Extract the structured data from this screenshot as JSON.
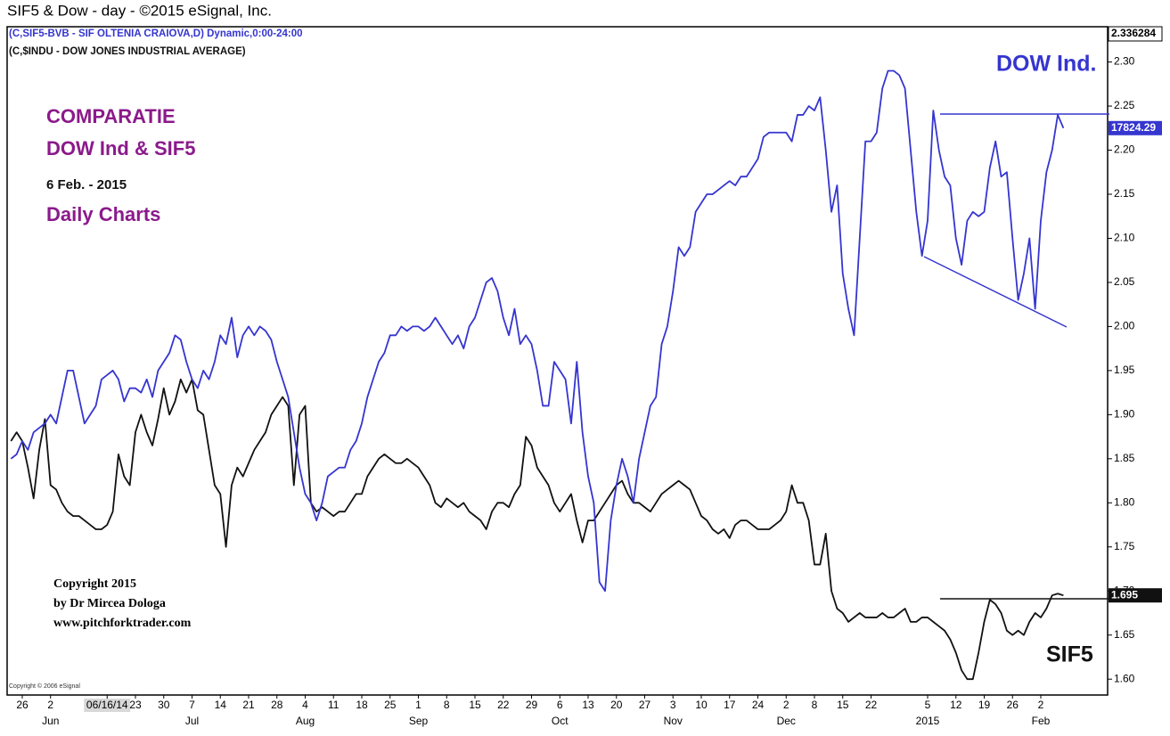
{
  "chart_data": {
    "type": "line",
    "title": "SIF5  & Dow - day - ©2015 eSignal, Inc.",
    "subtitle": "(C,SIF5-BVB - SIF OLTENIA CRAIOVA,D) Dynamic,0:00-24:00",
    "subtitle2": "(C,$INDU - DOW JONES INDUSTRIAL AVERAGE)",
    "annotations": {
      "heading": [
        "COMPARATIE",
        "DOW Ind  & SIF5"
      ],
      "date": "6 Feb. - 2015",
      "kind": "Daily Charts",
      "copyright": [
        "Copyright 2015",
        "by Dr Mircea Dologa",
        "www.pitchforktrader.com"
      ],
      "vendor": "Copyright © 2006 eSignal",
      "top_value": "2.336284"
    },
    "categories": [
      null,
      null,
      "26",
      null,
      null,
      null,
      null,
      "2",
      null,
      null,
      null,
      null,
      null,
      null,
      null,
      null,
      null,
      "06/16/14",
      null,
      null,
      null,
      null,
      "23",
      null,
      null,
      null,
      null,
      "30",
      null,
      null,
      null,
      null,
      "7",
      null,
      null,
      null,
      null,
      "14",
      null,
      null,
      null,
      null,
      "21",
      null,
      null,
      null,
      null,
      "28",
      null,
      null,
      null,
      null,
      "4",
      null,
      null,
      null,
      null,
      "11",
      null,
      null,
      null,
      null,
      "18",
      null,
      null,
      null,
      null,
      "25",
      null,
      null,
      null,
      null,
      "1",
      null,
      null,
      null,
      null,
      "8",
      null,
      null,
      null,
      null,
      "15",
      null,
      null,
      null,
      null,
      "22",
      null,
      null,
      null,
      null,
      "29",
      null,
      null,
      null,
      null,
      "6",
      null,
      null,
      null,
      null,
      "13",
      null,
      null,
      null,
      null,
      "20",
      null,
      null,
      null,
      null,
      "27",
      null,
      null,
      null,
      null,
      "3",
      null,
      null,
      null,
      null,
      "10",
      null,
      null,
      null,
      null,
      "17",
      null,
      null,
      null,
      null,
      "24",
      null,
      null,
      null,
      null,
      "2",
      null,
      null,
      null,
      null,
      "8",
      null,
      null,
      null,
      null,
      "15",
      null,
      null,
      null,
      null,
      "22",
      null,
      null,
      null,
      null,
      null,
      null,
      null,
      null,
      null,
      "5",
      null,
      null,
      null,
      null,
      "12",
      null,
      null,
      null,
      null,
      "19",
      null,
      null,
      null,
      null,
      "26",
      null,
      null,
      null,
      null,
      "2",
      null,
      null,
      null,
      null
    ],
    "month_categories": [
      null,
      null,
      null,
      null,
      null,
      null,
      null,
      "Jun",
      null,
      null,
      null,
      null,
      null,
      null,
      null,
      null,
      null,
      null,
      null,
      null,
      null,
      null,
      null,
      null,
      null,
      null,
      null,
      null,
      null,
      null,
      null,
      null,
      "Jul",
      null,
      null,
      null,
      null,
      null,
      null,
      null,
      null,
      null,
      null,
      null,
      null,
      null,
      null,
      null,
      null,
      null,
      null,
      null,
      "Aug",
      null,
      null,
      null,
      null,
      null,
      null,
      null,
      null,
      null,
      null,
      null,
      null,
      null,
      null,
      null,
      null,
      null,
      null,
      null,
      "Sep",
      null,
      null,
      null,
      null,
      null,
      null,
      null,
      null,
      null,
      null,
      null,
      null,
      null,
      null,
      null,
      null,
      null,
      null,
      null,
      null,
      null,
      null,
      null,
      null,
      "Oct",
      null,
      null,
      null,
      null,
      null,
      null,
      null,
      null,
      null,
      null,
      null,
      null,
      null,
      null,
      null,
      null,
      null,
      null,
      null,
      "Nov",
      null,
      null,
      null,
      null,
      null,
      null,
      null,
      null,
      null,
      null,
      null,
      null,
      null,
      null,
      null,
      null,
      null,
      null,
      null,
      "Dec",
      null,
      null,
      null,
      null,
      null,
      null,
      null,
      null,
      null,
      null,
      null,
      null,
      null,
      null,
      null,
      null,
      null,
      null,
      null,
      null,
      null,
      null,
      null,
      null,
      "2015",
      null,
      null,
      null,
      null,
      null,
      null,
      null,
      null,
      null,
      null,
      null,
      null,
      null,
      null,
      null,
      null,
      null,
      null,
      null,
      "Feb",
      null,
      null,
      null,
      null
    ],
    "series": [
      {
        "name": "SIF5",
        "color": "#111111",
        "last_label": "1.695",
        "values": [
          1.87,
          1.88,
          1.87,
          1.84,
          1.805,
          1.86,
          1.895,
          1.82,
          1.815,
          1.8,
          1.79,
          1.785,
          1.785,
          1.78,
          1.775,
          1.77,
          1.77,
          1.775,
          1.79,
          1.855,
          1.83,
          1.82,
          1.88,
          1.9,
          1.88,
          1.865,
          1.895,
          1.93,
          1.9,
          1.915,
          1.94,
          1.925,
          1.94,
          1.905,
          1.9,
          1.86,
          1.82,
          1.81,
          1.75,
          1.82,
          1.84,
          1.83,
          1.845,
          1.86,
          1.87,
          1.88,
          1.9,
          1.91,
          1.92,
          1.91,
          1.82,
          1.9,
          1.91,
          1.8,
          1.79,
          1.795,
          1.79,
          1.785,
          1.79,
          1.79,
          1.8,
          1.81,
          1.81,
          1.83,
          1.84,
          1.85,
          1.855,
          1.85,
          1.845,
          1.845,
          1.85,
          1.845,
          1.84,
          1.83,
          1.82,
          1.8,
          1.795,
          1.805,
          1.8,
          1.795,
          1.8,
          1.79,
          1.785,
          1.78,
          1.77,
          1.79,
          1.8,
          1.8,
          1.795,
          1.81,
          1.82,
          1.875,
          1.865,
          1.84,
          1.83,
          1.82,
          1.8,
          1.79,
          1.8,
          1.81,
          1.78,
          1.755,
          1.78,
          1.78,
          1.79,
          1.8,
          1.81,
          1.82,
          1.825,
          1.81,
          1.8,
          1.8,
          1.795,
          1.79,
          1.8,
          1.81,
          1.815,
          1.82,
          1.825,
          1.82,
          1.815,
          1.8,
          1.785,
          1.78,
          1.77,
          1.765,
          1.77,
          1.76,
          1.775,
          1.78,
          1.78,
          1.775,
          1.77,
          1.77,
          1.77,
          1.775,
          1.78,
          1.79,
          1.82,
          1.8,
          1.8,
          1.78,
          1.73,
          1.73,
          1.765,
          1.7,
          1.68,
          1.675,
          1.665,
          1.67,
          1.675,
          1.67,
          1.67,
          1.67,
          1.675,
          1.67,
          1.67,
          1.675,
          1.68,
          1.665,
          1.665,
          1.67,
          1.67,
          1.665,
          1.66,
          1.655,
          1.645,
          1.63,
          1.61,
          1.6,
          1.6,
          1.63,
          1.665,
          1.69,
          1.685,
          1.675,
          1.655,
          1.65,
          1.655,
          1.65,
          1.665,
          1.675,
          1.67,
          1.68,
          1.695,
          1.697,
          1.695
        ]
      },
      {
        "name": "DOW Ind.",
        "color": "#3535d0",
        "last_label": "17824.29",
        "values": [
          1.85,
          1.855,
          1.87,
          1.86,
          1.88,
          1.885,
          1.89,
          1.9,
          1.89,
          1.92,
          1.95,
          1.95,
          1.92,
          1.89,
          1.9,
          1.91,
          1.94,
          1.945,
          1.95,
          1.94,
          1.915,
          1.93,
          1.93,
          1.925,
          1.94,
          1.92,
          1.95,
          1.96,
          1.97,
          1.99,
          1.985,
          1.96,
          1.94,
          1.93,
          1.95,
          1.94,
          1.96,
          1.99,
          1.98,
          2.01,
          1.965,
          1.99,
          2.0,
          1.99,
          2.0,
          1.995,
          1.985,
          1.96,
          1.94,
          1.92,
          1.88,
          1.84,
          1.81,
          1.8,
          1.78,
          1.8,
          1.83,
          1.835,
          1.84,
          1.84,
          1.86,
          1.87,
          1.89,
          1.92,
          1.94,
          1.96,
          1.97,
          1.99,
          1.99,
          2.0,
          1.995,
          2.0,
          2.0,
          1.995,
          2.0,
          2.01,
          2.0,
          1.99,
          1.98,
          1.99,
          1.975,
          2.0,
          2.01,
          2.03,
          2.05,
          2.055,
          2.04,
          2.01,
          1.99,
          2.02,
          1.98,
          1.99,
          1.98,
          1.95,
          1.91,
          1.91,
          1.96,
          1.95,
          1.94,
          1.89,
          1.96,
          1.88,
          1.83,
          1.8,
          1.71,
          1.7,
          1.78,
          1.82,
          1.85,
          1.83,
          1.8,
          1.85,
          1.88,
          1.91,
          1.92,
          1.98,
          2.0,
          2.04,
          2.09,
          2.08,
          2.09,
          2.13,
          2.14,
          2.15,
          2.15,
          2.155,
          2.16,
          2.165,
          2.16,
          2.17,
          2.17,
          2.18,
          2.19,
          2.215,
          2.22,
          2.22,
          2.22,
          2.22,
          2.21,
          2.24,
          2.24,
          2.25,
          2.245,
          2.26,
          2.2,
          2.13,
          2.16,
          2.06,
          2.02,
          1.99,
          2.1,
          2.21,
          2.21,
          2.22,
          2.27,
          2.29,
          2.29,
          2.285,
          2.27,
          2.2,
          2.13,
          2.08,
          2.12,
          2.245,
          2.2,
          2.17,
          2.16,
          2.1,
          2.07,
          2.12,
          2.13,
          2.125,
          2.13,
          2.18,
          2.21,
          2.17,
          2.175,
          2.1,
          2.03,
          2.06,
          2.1,
          2.02,
          2.12,
          2.175,
          2.2,
          2.24,
          2.225
        ]
      }
    ],
    "ylim": [
      1.582,
      2.34
    ],
    "yticks": [
      {
        "value": 1.6,
        "label": "1.60"
      },
      1.65,
      {
        "value": 1.7,
        "label": "1.70"
      },
      1.75,
      {
        "value": 1.8,
        "label": "1.80"
      },
      1.85,
      {
        "value": 1.9,
        "label": "1.90"
      },
      1.95,
      {
        "value": 2.0,
        "label": "2.00"
      },
      2.05,
      {
        "value": 2.1,
        "label": "2.10"
      },
      2.15,
      {
        "value": 2.2,
        "label": "2.20"
      },
      2.25,
      {
        "value": 2.3,
        "label": "2.30"
      }
    ],
    "grid": false
  }
}
